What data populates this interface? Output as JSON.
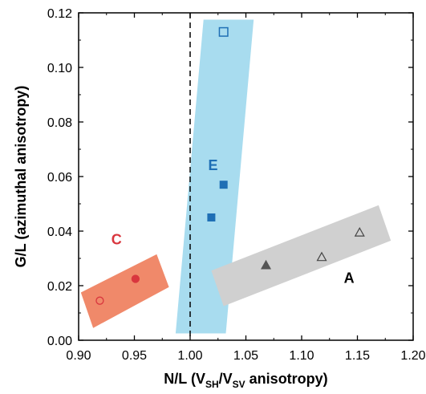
{
  "chart_data": {
    "type": "scatter",
    "xlim": [
      0.9,
      1.2
    ],
    "ylim": [
      0.0,
      0.12
    ],
    "x_ticks": [
      0.9,
      0.95,
      1.0,
      1.05,
      1.1,
      1.15,
      1.2
    ],
    "x_tick_labels": [
      "0.90",
      "0.95",
      "1.00",
      "1.05",
      "1.10",
      "1.15",
      "1.20"
    ],
    "y_ticks": [
      0.0,
      0.02,
      0.04,
      0.06,
      0.08,
      0.1,
      0.12
    ],
    "y_tick_labels": [
      "0.00",
      "0.02",
      "0.04",
      "0.06",
      "0.08",
      "0.10",
      "0.12"
    ],
    "xlabel": {
      "main": "N/L (V",
      "sub1": "SH",
      "mid": "/V",
      "sub2": "SV",
      "end": " anisotropy)"
    },
    "ylabel": "G/L (azimuthal anisotropy)",
    "grid": false,
    "reference_line": {
      "x": 1.0,
      "style": "dashed",
      "color": "#000000"
    },
    "groups": [
      {
        "label": "C",
        "label_color": "#d9363e",
        "label_position": {
          "x": 0.934,
          "y": 0.0365
        },
        "band_color": "#f0896a",
        "band": [
          [
            0.902,
            0.0175
          ],
          [
            0.97,
            0.0315
          ],
          [
            0.981,
            0.0195
          ],
          [
            0.913,
            0.0045
          ]
        ],
        "points": [
          {
            "x": 0.919,
            "y": 0.0145,
            "marker": "circle",
            "filled": false,
            "color": "#d9363e"
          },
          {
            "x": 0.951,
            "y": 0.0225,
            "marker": "circle",
            "filled": true,
            "color": "#d9363e"
          }
        ]
      },
      {
        "label": "E",
        "label_color": "#1f6fb5",
        "label_position": {
          "x": 1.0205,
          "y": 0.0638
        },
        "band_color": "#a8dcef",
        "band": [
          [
            1.012,
            0.1175
          ],
          [
            1.057,
            0.1175
          ],
          [
            1.032,
            0.0025
          ],
          [
            0.987,
            0.0025
          ]
        ],
        "points": [
          {
            "x": 1.03,
            "y": 0.113,
            "marker": "square",
            "filled": false,
            "color": "#1f6fb5"
          },
          {
            "x": 1.03,
            "y": 0.057,
            "marker": "square",
            "filled": true,
            "color": "#1f6fb5"
          },
          {
            "x": 1.019,
            "y": 0.045,
            "marker": "square",
            "filled": true,
            "color": "#1f6fb5"
          }
        ]
      },
      {
        "label": "A",
        "label_color": "#000000",
        "label_position": {
          "x": 1.1425,
          "y": 0.0225
        },
        "band_color": "#d0d0d0",
        "band": [
          [
            1.019,
            0.0255
          ],
          [
            1.169,
            0.0495
          ],
          [
            1.18,
            0.0365
          ],
          [
            1.03,
            0.0125
          ]
        ],
        "points": [
          {
            "x": 1.068,
            "y": 0.0275,
            "marker": "triangle",
            "filled": true,
            "color": "#555555"
          },
          {
            "x": 1.118,
            "y": 0.0305,
            "marker": "triangle",
            "filled": false,
            "color": "#444444"
          },
          {
            "x": 1.152,
            "y": 0.0395,
            "marker": "triangle",
            "filled": false,
            "color": "#444444"
          }
        ]
      }
    ]
  }
}
